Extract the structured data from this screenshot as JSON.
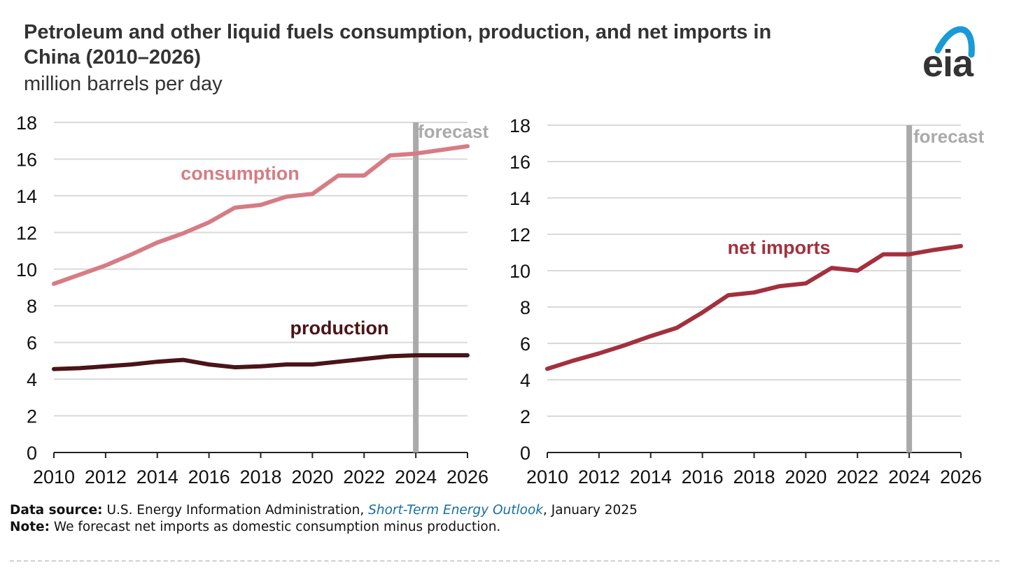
{
  "header": {
    "title": "Petroleum and other liquid fuels consumption, production, and net imports in China (2010–2026)",
    "subtitle": "million barrels per day",
    "logo_text": "eia"
  },
  "footer": {
    "source_label": "Data source:",
    "source_text": "U.S. Energy Information Administration,",
    "source_link": "Short-Term Energy Outlook",
    "source_date": ", January 2025",
    "note_label": "Note:",
    "note_text": "We forecast net imports as domestic consumption minus production."
  },
  "colors": {
    "consumption": "#d67c84",
    "production": "#4a1419",
    "net_imports": "#a3303d",
    "forecast": "#aaaaaa",
    "grid": "#d9d9d9",
    "logo_arc": "#1a9ad6"
  },
  "chart_data": [
    {
      "type": "line",
      "xlabel": "",
      "ylabel": "",
      "ylim": [
        0,
        18
      ],
      "yticks": [
        0,
        2,
        4,
        6,
        8,
        10,
        12,
        14,
        16,
        18
      ],
      "xlim": [
        2010,
        2026
      ],
      "xticks": [
        2010,
        2012,
        2014,
        2016,
        2018,
        2020,
        2022,
        2024,
        2026
      ],
      "grid": true,
      "forecast_start": 2024,
      "forecast_label": "forecast",
      "x": [
        2010,
        2011,
        2012,
        2013,
        2014,
        2015,
        2016,
        2017,
        2018,
        2019,
        2020,
        2021,
        2022,
        2023,
        2024,
        2025,
        2026
      ],
      "series": [
        {
          "name": "consumption",
          "color": "#d67c84",
          "values": [
            9.2,
            9.7,
            10.2,
            10.8,
            11.45,
            11.95,
            12.55,
            13.35,
            13.5,
            13.95,
            14.1,
            15.1,
            15.1,
            16.2,
            16.3,
            16.5,
            16.7
          ]
        },
        {
          "name": "production",
          "color": "#4a1419",
          "values": [
            4.55,
            4.6,
            4.7,
            4.8,
            4.95,
            5.05,
            4.8,
            4.65,
            4.7,
            4.8,
            4.8,
            4.95,
            5.1,
            5.25,
            5.3,
            5.3,
            5.3
          ]
        }
      ]
    },
    {
      "type": "line",
      "xlabel": "",
      "ylabel": "",
      "ylim": [
        0,
        18
      ],
      "yticks": [
        0,
        2,
        4,
        6,
        8,
        10,
        12,
        14,
        16,
        18
      ],
      "xlim": [
        2010,
        2026
      ],
      "xticks": [
        2010,
        2012,
        2014,
        2016,
        2018,
        2020,
        2022,
        2024,
        2026
      ],
      "grid": true,
      "forecast_start": 2024,
      "forecast_label": "forecast",
      "x": [
        2010,
        2011,
        2012,
        2013,
        2014,
        2015,
        2016,
        2017,
        2018,
        2019,
        2020,
        2021,
        2022,
        2023,
        2024,
        2025,
        2026
      ],
      "series": [
        {
          "name": "net imports",
          "color": "#a3303d",
          "values": [
            4.6,
            5.05,
            5.45,
            5.9,
            6.4,
            6.85,
            7.7,
            8.65,
            8.8,
            9.15,
            9.3,
            10.15,
            10.0,
            10.9,
            10.9,
            11.15,
            11.35
          ]
        }
      ]
    }
  ]
}
